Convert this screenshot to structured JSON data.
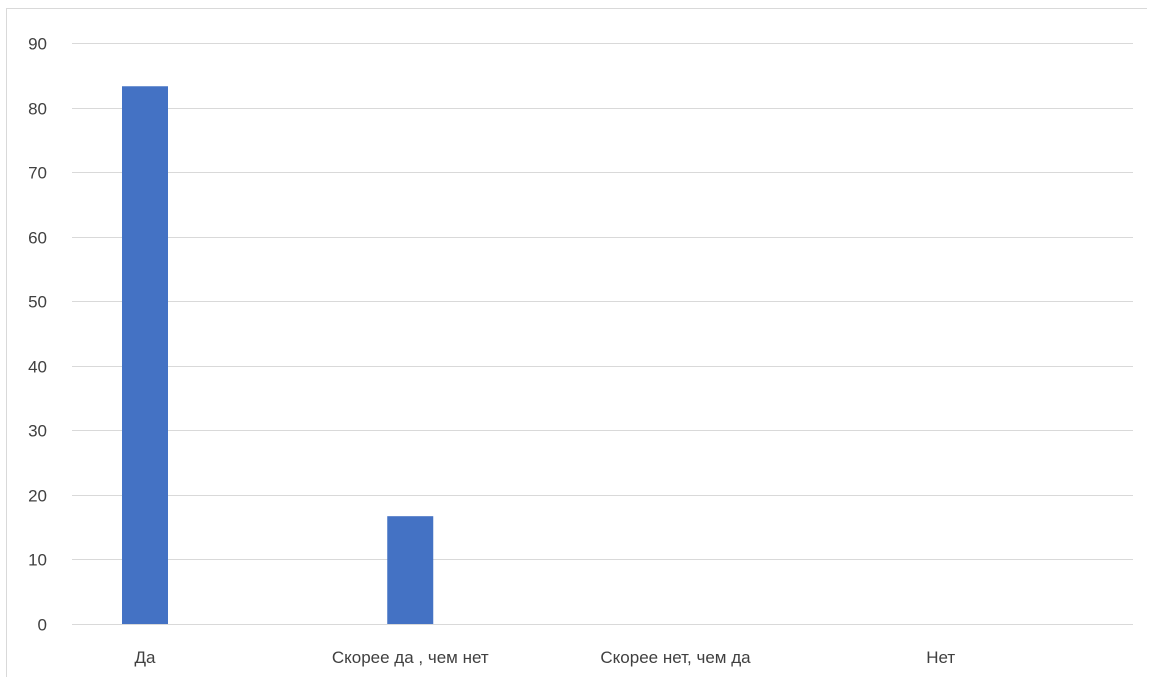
{
  "chart_data": {
    "type": "bar",
    "title": "",
    "xlabel": "",
    "ylabel": "",
    "categories": [
      "Да",
      "Скорее да , чем нет",
      "Скорее нет, чем да",
      "Нет"
    ],
    "values": [
      83.3,
      16.7,
      0,
      0
    ],
    "ylim": [
      0,
      90
    ],
    "yticks": [
      0,
      10,
      20,
      30,
      40,
      50,
      60,
      70,
      80,
      90
    ],
    "grid": true,
    "legend": "none",
    "bar_color": "#4472c4"
  }
}
